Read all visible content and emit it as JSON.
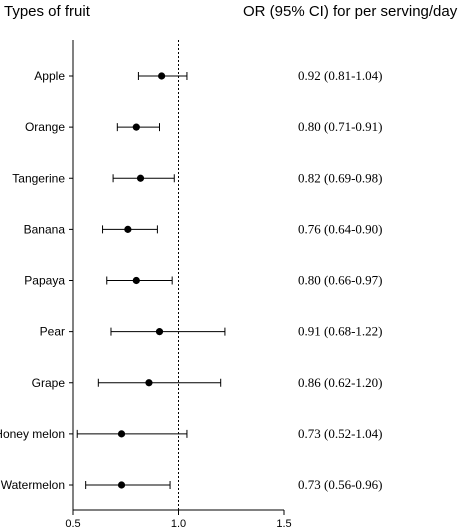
{
  "chart_data": {
    "type": "forest",
    "header_left": "Types of fruit",
    "header_right": "OR (95% CI) for per serving/day",
    "categories": [
      "Apple",
      "Orange",
      "Tangerine",
      "Banana",
      "Papaya",
      "Pear",
      "Grape",
      "Honey melon",
      "Watermelon"
    ],
    "or": [
      0.92,
      0.8,
      0.82,
      0.76,
      0.8,
      0.91,
      0.86,
      0.73,
      0.73
    ],
    "ci_low": [
      0.81,
      0.71,
      0.69,
      0.64,
      0.66,
      0.68,
      0.62,
      0.52,
      0.56
    ],
    "ci_high": [
      1.04,
      0.91,
      0.98,
      0.9,
      0.97,
      1.22,
      1.2,
      1.04,
      0.96
    ],
    "value_labels": [
      "0.92 (0.81-1.04)",
      "0.80 (0.71-0.91)",
      "0.82 (0.69-0.98)",
      "0.76 (0.64-0.90)",
      "0.80 (0.66-0.97)",
      "0.91 (0.68-1.22)",
      "0.86 (0.62-1.20)",
      "0.73 (0.52-1.04)",
      "0.73 (0.56-0.96)"
    ],
    "xlim": [
      0.5,
      1.5
    ],
    "xticks": [
      0.5,
      1.0,
      1.5
    ],
    "xtick_labels": [
      "0.5",
      "1.0",
      "1.5"
    ],
    "reference_line": 1.0,
    "grid": false
  }
}
